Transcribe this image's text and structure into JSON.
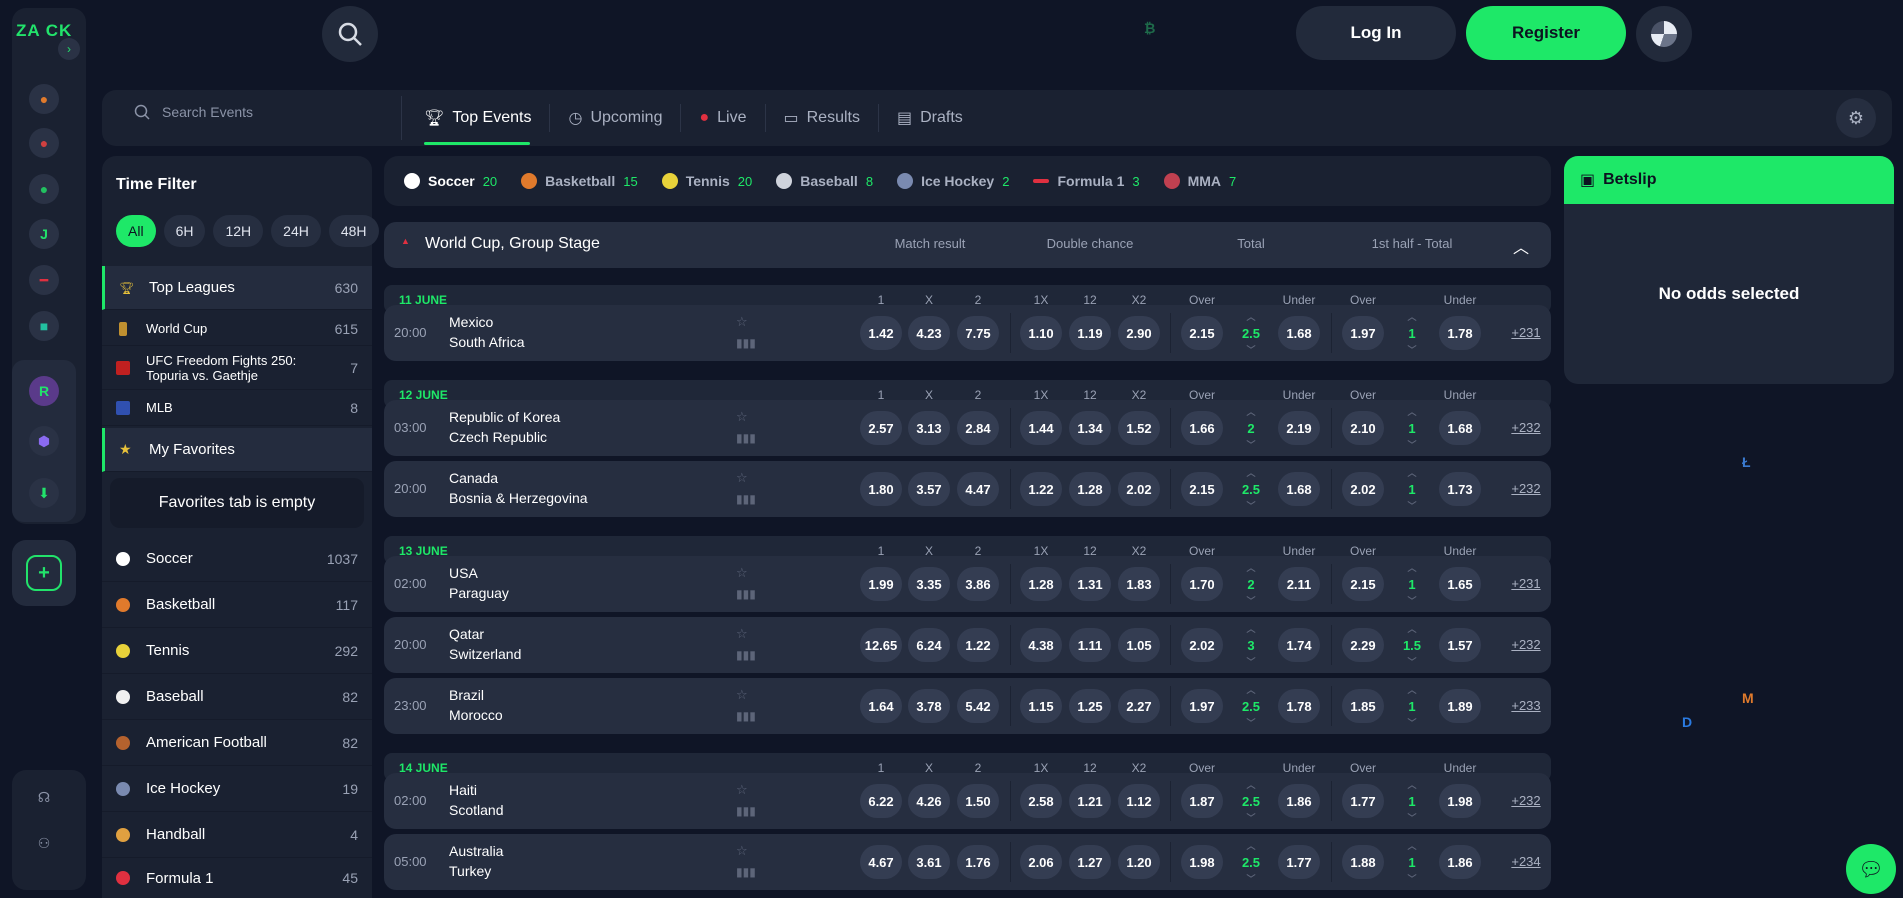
{
  "rail": {
    "logo": "ZA CK",
    "icons": [
      "casino-icon",
      "fire-icon",
      "sports-icon",
      "j-icon",
      "f1-icon",
      "promo-icon",
      "r-icon",
      "vip-icon",
      "download-icon",
      "betslip-add-icon",
      "support-icon",
      "users-icon"
    ]
  },
  "header": {
    "login_label": "Log In",
    "register_label": "Register"
  },
  "nav": {
    "search_placeholder": "Search Events",
    "tabs": [
      {
        "label": "Top Events",
        "icon": "trophy-icon"
      },
      {
        "label": "Upcoming",
        "icon": "clock-icon"
      },
      {
        "label": "Live",
        "icon": "live-dot-icon"
      },
      {
        "label": "Results",
        "icon": "results-icon"
      },
      {
        "label": "Drafts",
        "icon": "drafts-icon"
      }
    ]
  },
  "time_filter": {
    "title": "Time Filter",
    "options": [
      "All",
      "6H",
      "12H",
      "24H",
      "48H"
    ]
  },
  "leagues": {
    "top": {
      "label": "Top Leagues",
      "count": "630"
    },
    "items": [
      {
        "label": "World Cup",
        "count": "615"
      },
      {
        "label": "UFC Freedom Fights 250: Topuria vs. Gaethje",
        "count": "7"
      },
      {
        "label": "MLB",
        "count": "8"
      }
    ],
    "favorites_label": "My Favorites",
    "favorites_empty": "Favorites tab is empty",
    "sports": [
      {
        "label": "Soccer",
        "count": "1037",
        "color": "#ffffff"
      },
      {
        "label": "Basketball",
        "count": "117",
        "color": "#e07a2c"
      },
      {
        "label": "Tennis",
        "count": "292",
        "color": "#e8d23a"
      },
      {
        "label": "Baseball",
        "count": "82",
        "color": "#f0f0f0"
      },
      {
        "label": "American Football",
        "count": "82",
        "color": "#b5622e"
      },
      {
        "label": "Ice Hockey",
        "count": "19",
        "color": "#7a8ab0"
      },
      {
        "label": "Handball",
        "count": "4",
        "color": "#e0a040"
      },
      {
        "label": "Formula 1",
        "count": "45",
        "color": "#e03040"
      }
    ]
  },
  "sport_tabs": [
    {
      "label": "Soccer",
      "count": "20",
      "color": "#ffffff"
    },
    {
      "label": "Basketball",
      "count": "15",
      "color": "#e07a2c"
    },
    {
      "label": "Tennis",
      "count": "20",
      "color": "#e8d23a"
    },
    {
      "label": "Baseball",
      "count": "8",
      "color": "#cfd3dc"
    },
    {
      "label": "Ice Hockey",
      "count": "2",
      "color": "#7a8ab0"
    },
    {
      "label": "Formula 1",
      "count": "3",
      "color": "#e03040"
    },
    {
      "label": "MMA",
      "count": "7",
      "color": "#c04050"
    }
  ],
  "league": {
    "title": "World Cup, Group Stage",
    "col_groups": [
      "Match result",
      "Double chance",
      "Total",
      "1st half - Total"
    ],
    "col_heads": [
      "1",
      "X",
      "2",
      "1X",
      "12",
      "X2",
      "Over",
      "Under",
      "Over",
      "Under"
    ]
  },
  "days": [
    {
      "date": "11 JUNE",
      "matches": [
        {
          "time": "20:00",
          "home": "Mexico",
          "away": "South Africa",
          "odds": [
            "1.42",
            "4.23",
            "7.75",
            "1.10",
            "1.19",
            "2.90",
            "2.15",
            "2.5",
            "1.68",
            "1.97",
            "1",
            "1.78"
          ],
          "more": "+231"
        }
      ]
    },
    {
      "date": "12 JUNE",
      "matches": [
        {
          "time": "03:00",
          "home": "Republic of Korea",
          "away": "Czech Republic",
          "odds": [
            "2.57",
            "3.13",
            "2.84",
            "1.44",
            "1.34",
            "1.52",
            "1.66",
            "2",
            "2.19",
            "2.10",
            "1",
            "1.68"
          ],
          "more": "+232"
        },
        {
          "time": "20:00",
          "home": "Canada",
          "away": "Bosnia & Herzegovina",
          "odds": [
            "1.80",
            "3.57",
            "4.47",
            "1.22",
            "1.28",
            "2.02",
            "2.15",
            "2.5",
            "1.68",
            "2.02",
            "1",
            "1.73"
          ],
          "more": "+232"
        }
      ]
    },
    {
      "date": "13 JUNE",
      "matches": [
        {
          "time": "02:00",
          "home": "USA",
          "away": "Paraguay",
          "odds": [
            "1.99",
            "3.35",
            "3.86",
            "1.28",
            "1.31",
            "1.83",
            "1.70",
            "2",
            "2.11",
            "2.15",
            "1",
            "1.65"
          ],
          "more": "+231"
        },
        {
          "time": "20:00",
          "home": "Qatar",
          "away": "Switzerland",
          "odds": [
            "12.65",
            "6.24",
            "1.22",
            "4.38",
            "1.11",
            "1.05",
            "2.02",
            "3",
            "1.74",
            "2.29",
            "1.5",
            "1.57"
          ],
          "more": "+232"
        },
        {
          "time": "23:00",
          "home": "Brazil",
          "away": "Morocco",
          "odds": [
            "1.64",
            "3.78",
            "5.42",
            "1.15",
            "1.25",
            "2.27",
            "1.97",
            "2.5",
            "1.78",
            "1.85",
            "1",
            "1.89"
          ],
          "more": "+233"
        }
      ]
    },
    {
      "date": "14 JUNE",
      "matches": [
        {
          "time": "02:00",
          "home": "Haiti",
          "away": "Scotland",
          "odds": [
            "6.22",
            "4.26",
            "1.50",
            "2.58",
            "1.21",
            "1.12",
            "1.87",
            "2.5",
            "1.86",
            "1.77",
            "1",
            "1.98"
          ],
          "more": "+232"
        },
        {
          "time": "05:00",
          "home": "Australia",
          "away": "Turkey",
          "odds": [
            "4.67",
            "3.61",
            "1.76",
            "2.06",
            "1.27",
            "1.20",
            "1.98",
            "2.5",
            "1.77",
            "1.88",
            "1",
            "1.86"
          ],
          "more": "+234"
        }
      ]
    }
  ],
  "betslip": {
    "title": "Betslip",
    "empty": "No odds selected"
  },
  "colors": {
    "accent": "#1ee868",
    "bg": "#0f1526",
    "panel": "#1a2131",
    "row": "#262e40"
  }
}
